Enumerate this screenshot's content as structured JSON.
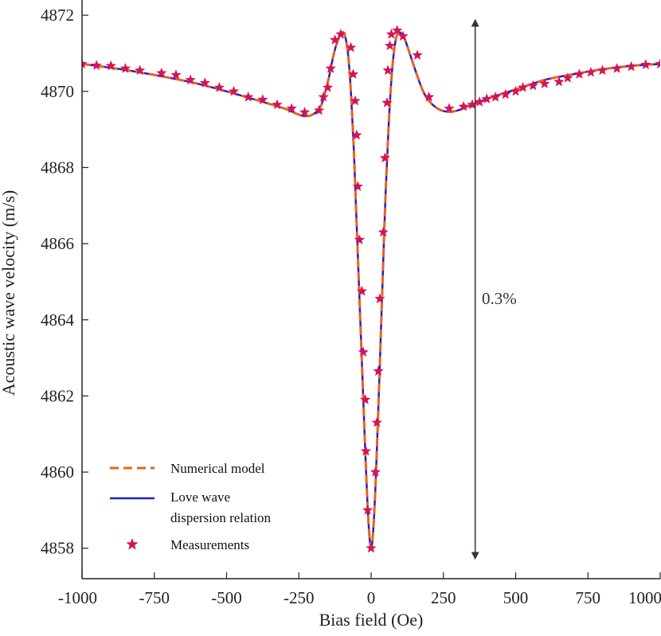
{
  "colors": {
    "numerical_model": "#E8641B",
    "love_wave": "#1F1FD6",
    "measurements": "#D4145A",
    "axis": "#222222",
    "arrow": "#333333"
  },
  "chart_data": {
    "type": "line",
    "xlabel": "Bias field (Oe)",
    "ylabel": "Acoustic wave velocity (m/s)",
    "xlim": [
      -1000,
      1000
    ],
    "ylim": [
      4857.2,
      4872.4
    ],
    "xticks": [
      -1000,
      -750,
      -500,
      -250,
      0,
      250,
      500,
      750,
      1000
    ],
    "xtick_labels": [
      "-1000",
      "-750",
      "-500",
      "-250",
      "0",
      "250",
      "500",
      "750",
      "1000"
    ],
    "yticks": [
      4858,
      4860,
      4862,
      4864,
      4866,
      4868,
      4870,
      4872
    ],
    "ytick_labels": [
      "4858",
      "4860",
      "4862",
      "4864",
      "4866",
      "4868",
      "4870",
      "4872"
    ],
    "grid": false,
    "legend_position": "bottom-left",
    "annotation": {
      "text": "0.3%",
      "arrow_x": 360,
      "arrow_y_from": 4857.8,
      "arrow_y_to": 4871.8
    },
    "series": [
      {
        "name": "Numerical model",
        "style": "dashed-line",
        "x": [
          -1000,
          -900,
          -800,
          -700,
          -600,
          -500,
          -400,
          -300,
          -260,
          -230,
          -200,
          -175,
          -160,
          -145,
          -130,
          -115,
          -100,
          -90,
          -80,
          -70,
          -60,
          -50,
          -40,
          -30,
          -20,
          -10,
          0,
          10,
          20,
          30,
          40,
          50,
          60,
          70,
          80,
          90,
          100,
          110,
          120,
          140,
          160,
          180,
          200,
          230,
          260,
          300,
          400,
          500,
          600,
          700,
          800,
          900,
          1000
        ],
        "y": [
          4870.72,
          4870.62,
          4870.5,
          4870.36,
          4870.2,
          4870.0,
          4869.78,
          4869.55,
          4869.42,
          4869.35,
          4869.4,
          4869.6,
          4869.95,
          4870.4,
          4870.95,
          4871.35,
          4871.55,
          4871.45,
          4871.0,
          4870.0,
          4868.5,
          4866.5,
          4864.5,
          4862.5,
          4860.5,
          4858.8,
          4858.0,
          4858.8,
          4860.6,
          4862.8,
          4865.1,
          4867.3,
          4869.0,
          4870.3,
          4871.1,
          4871.5,
          4871.55,
          4871.45,
          4871.3,
          4870.85,
          4870.4,
          4870.0,
          4869.75,
          4869.55,
          4869.47,
          4869.5,
          4869.8,
          4870.05,
          4870.3,
          4870.45,
          4870.58,
          4870.67,
          4870.72
        ]
      },
      {
        "name": "Love wave\ndispersion relation",
        "name_lines": [
          "Love wave",
          "dispersion relation"
        ],
        "style": "solid-line",
        "x": [
          -1000,
          -900,
          -800,
          -700,
          -600,
          -500,
          -400,
          -300,
          -260,
          -230,
          -200,
          -175,
          -160,
          -145,
          -130,
          -115,
          -100,
          -90,
          -80,
          -70,
          -60,
          -50,
          -40,
          -30,
          -20,
          -10,
          0,
          10,
          20,
          30,
          40,
          50,
          60,
          70,
          80,
          90,
          100,
          110,
          120,
          140,
          160,
          180,
          200,
          230,
          260,
          300,
          400,
          500,
          600,
          700,
          800,
          900,
          1000
        ],
        "y": [
          4870.72,
          4870.62,
          4870.5,
          4870.36,
          4870.2,
          4870.0,
          4869.78,
          4869.55,
          4869.42,
          4869.35,
          4869.4,
          4869.6,
          4869.95,
          4870.4,
          4870.95,
          4871.35,
          4871.55,
          4871.45,
          4871.0,
          4870.0,
          4868.5,
          4866.5,
          4864.5,
          4862.5,
          4860.5,
          4858.8,
          4858.0,
          4858.8,
          4860.6,
          4862.8,
          4865.1,
          4867.3,
          4869.0,
          4870.3,
          4871.1,
          4871.5,
          4871.55,
          4871.45,
          4871.3,
          4870.85,
          4870.4,
          4870.0,
          4869.75,
          4869.55,
          4869.47,
          4869.5,
          4869.8,
          4870.05,
          4870.3,
          4870.45,
          4870.58,
          4870.67,
          4870.72
        ]
      },
      {
        "name": "Measurements",
        "style": "star-markers",
        "x": [
          -1000,
          -950,
          -900,
          -850,
          -800,
          -725,
          -675,
          -625,
          -575,
          -525,
          -475,
          -425,
          -375,
          -325,
          -275,
          -230,
          -180,
          -165,
          -150,
          -140,
          -125,
          -105,
          -70,
          -62,
          -55,
          -50,
          -46,
          -40,
          -32,
          -27,
          -20,
          -18,
          -12,
          0,
          15,
          20,
          25,
          30,
          42,
          48,
          55,
          58,
          65,
          70,
          90,
          110,
          160,
          200,
          270,
          320,
          350,
          375,
          400,
          430,
          465,
          500,
          525,
          560,
          600,
          650,
          680,
          720,
          760,
          800,
          850,
          900,
          950,
          1000
        ],
        "y": [
          4870.72,
          4870.68,
          4870.67,
          4870.6,
          4870.55,
          4870.48,
          4870.43,
          4870.3,
          4870.22,
          4870.1,
          4870.0,
          4869.85,
          4869.78,
          4869.65,
          4869.55,
          4869.45,
          4869.5,
          4869.85,
          4870.1,
          4870.6,
          4871.35,
          4871.5,
          4871.15,
          4870.45,
          4869.75,
          4868.85,
          4867.5,
          4866.1,
          4864.75,
          4863.15,
          4861.9,
          4860.55,
          4859.0,
          4858.0,
          4860.0,
          4861.3,
          4862.65,
          4864.55,
          4866.3,
          4868.25,
          4869.7,
          4870.55,
          4871.2,
          4871.5,
          4871.6,
          4871.45,
          4870.95,
          4869.85,
          4869.55,
          4869.6,
          4869.65,
          4869.72,
          4869.8,
          4869.85,
          4869.92,
          4870.0,
          4870.1,
          4870.15,
          4870.2,
          4870.25,
          4870.35,
          4870.45,
          4870.5,
          4870.55,
          4870.6,
          4870.65,
          4870.7,
          4870.72
        ]
      }
    ]
  }
}
